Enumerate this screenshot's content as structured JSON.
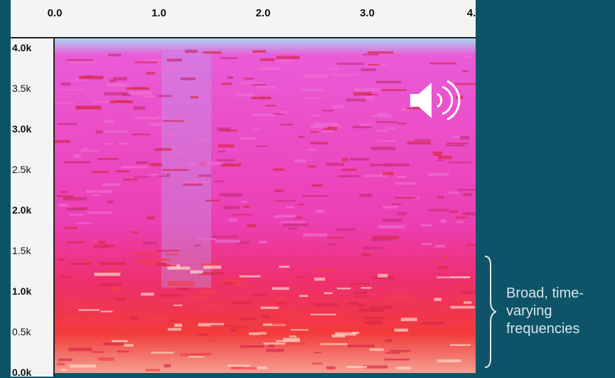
{
  "time_ruler": {
    "ticks": [
      "0.0",
      "1.0",
      "2.0",
      "3.0",
      "4."
    ]
  },
  "frequency_ruler": {
    "ticks": [
      "4.0k",
      "3.5k",
      "3.0k",
      "2.5k",
      "2.0k",
      "1.5k",
      "1.0k",
      "0.5k",
      "0.0k"
    ]
  },
  "annotation": "Broad, time-varying frequencies"
}
